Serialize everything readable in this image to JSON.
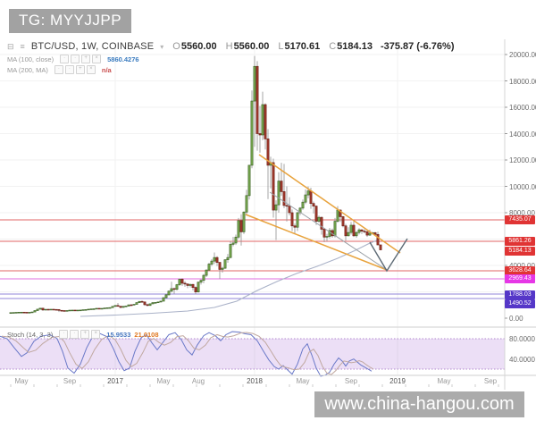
{
  "watermarks": {
    "top": "TG: MYYJJPP",
    "bottom": "www.china-hangou.com"
  },
  "header": {
    "icons": [
      "⊟",
      "≡"
    ],
    "symbol": "BTC/USD, 1W, COINBASE",
    "caret": "▾",
    "ohlc": {
      "o_label": "O",
      "o": "5560.00",
      "h_label": "H",
      "h": "5560.00",
      "l_label": "L",
      "l": "5170.61",
      "c_label": "C",
      "c": "5184.13"
    },
    "change": "-375.87 (-6.76%)"
  },
  "indicators": [
    {
      "label": "MA (100, close)",
      "value": "5860.4276",
      "value_class": "ma-val-blue"
    },
    {
      "label": "MA (200, MA)",
      "value": "n/a",
      "value_class": "ma-val-red"
    }
  ],
  "box_glyphs": [
    "·",
    "·",
    "+",
    "×"
  ],
  "stoch_row": {
    "label": "Stoch (14, 3, 3)",
    "k_value": "15.9533",
    "d_value": "21.0108"
  },
  "chart_data": {
    "type": "candlestick",
    "symbol": "BTC/USD",
    "interval": "1W",
    "exchange": "COINBASE",
    "current": {
      "open": 5560.0,
      "high": 5560.0,
      "low": 5170.61,
      "close": 5184.13,
      "change": -375.87,
      "change_pct": -6.76
    },
    "start": "2016-04",
    "freq": "weekly",
    "ylim": [
      0,
      21000
    ],
    "candles": [
      [
        415,
        425,
        405,
        420
      ],
      [
        420,
        435,
        410,
        428
      ],
      [
        428,
        445,
        418,
        440
      ],
      [
        440,
        455,
        425,
        450
      ],
      [
        450,
        460,
        440,
        452
      ],
      [
        452,
        458,
        435,
        445
      ],
      [
        445,
        452,
        430,
        440
      ],
      [
        440,
        450,
        432,
        444
      ],
      [
        444,
        475,
        438,
        470
      ],
      [
        470,
        590,
        465,
        575
      ],
      [
        575,
        700,
        560,
        680
      ],
      [
        680,
        780,
        640,
        755
      ],
      [
        755,
        770,
        550,
        625
      ],
      [
        625,
        690,
        600,
        670
      ],
      [
        670,
        705,
        640,
        650
      ],
      [
        650,
        690,
        630,
        675
      ],
      [
        675,
        685,
        605,
        660
      ],
      [
        660,
        665,
        610,
        655
      ],
      [
        655,
        660,
        465,
        590
      ],
      [
        590,
        600,
        540,
        575
      ],
      [
        575,
        590,
        555,
        572
      ],
      [
        572,
        582,
        560,
        578
      ],
      [
        578,
        615,
        570,
        605
      ],
      [
        605,
        615,
        590,
        610
      ],
      [
        610,
        618,
        595,
        600
      ],
      [
        600,
        612,
        590,
        608
      ],
      [
        608,
        620,
        595,
        615
      ],
      [
        615,
        645,
        608,
        640
      ],
      [
        640,
        660,
        630,
        650
      ],
      [
        650,
        690,
        640,
        680
      ],
      [
        680,
        715,
        670,
        700
      ],
      [
        700,
        740,
        685,
        710
      ],
      [
        710,
        755,
        695,
        745
      ],
      [
        745,
        758,
        700,
        735
      ],
      [
        735,
        750,
        720,
        742
      ],
      [
        742,
        780,
        730,
        770
      ],
      [
        770,
        800,
        760,
        790
      ],
      [
        790,
        812,
        775,
        800
      ],
      [
        800,
        900,
        790,
        895
      ],
      [
        895,
        985,
        870,
        960
      ],
      [
        960,
        1150,
        880,
        900
      ],
      [
        900,
        912,
        750,
        820
      ],
      [
        820,
        920,
        795,
        895
      ],
      [
        895,
        930,
        868,
        920
      ],
      [
        920,
        1022,
        900,
        1010
      ],
      [
        1010,
        1070,
        940,
        1000
      ],
      [
        1000,
        1062,
        988,
        1050
      ],
      [
        1050,
        1200,
        1040,
        1180
      ],
      [
        1180,
        1292,
        1150,
        1270
      ],
      [
        1270,
        1340,
        1160,
        1230
      ],
      [
        1230,
        1260,
        940,
        1025
      ],
      [
        1025,
        1100,
        900,
        965
      ],
      [
        965,
        1102,
        940,
        1090
      ],
      [
        1090,
        1192,
        1060,
        1180
      ],
      [
        1180,
        1222,
        1140,
        1190
      ],
      [
        1190,
        1252,
        1168,
        1230
      ],
      [
        1230,
        1302,
        1188,
        1290
      ],
      [
        1290,
        1580,
        1280,
        1555
      ],
      [
        1555,
        1850,
        1510,
        1770
      ],
      [
        1770,
        2090,
        1720,
        2050
      ],
      [
        2050,
        2760,
        1950,
        2240
      ],
      [
        2240,
        2320,
        1850,
        2190
      ],
      [
        2190,
        2592,
        2100,
        2540
      ],
      [
        2540,
        3000,
        2450,
        2960
      ],
      [
        2960,
        3025,
        2450,
        2650
      ],
      [
        2650,
        2802,
        2380,
        2590
      ],
      [
        2590,
        2640,
        2280,
        2480
      ],
      [
        2480,
        2622,
        2330,
        2560
      ],
      [
        2560,
        2600,
        2110,
        2330
      ],
      [
        2330,
        2410,
        1830,
        1990
      ],
      [
        1990,
        2780,
        1940,
        2730
      ],
      [
        2730,
        2940,
        2550,
        2870
      ],
      [
        2870,
        3350,
        2650,
        3250
      ],
      [
        3250,
        3700,
        3120,
        3650
      ],
      [
        3650,
        4200,
        3600,
        4100
      ],
      [
        4100,
        4480,
        3950,
        4330
      ],
      [
        4330,
        4980,
        4110,
        4600
      ],
      [
        4600,
        4700,
        3950,
        4230
      ],
      [
        4230,
        4260,
        2975,
        3700
      ],
      [
        3700,
        3902,
        3460,
        3790
      ],
      [
        3790,
        4470,
        3750,
        4430
      ],
      [
        4430,
        4870,
        4200,
        4600
      ],
      [
        4600,
        5860,
        4540,
        5600
      ],
      [
        5600,
        6170,
        5450,
        5700
      ],
      [
        5700,
        6340,
        5550,
        6150
      ],
      [
        6150,
        7600,
        6000,
        7400
      ],
      [
        7400,
        7880,
        5507,
        6550
      ],
      [
        6550,
        8100,
        6380,
        8050
      ],
      [
        8050,
        9740,
        7790,
        9300
      ],
      [
        9300,
        11550,
        9000,
        11600
      ],
      [
        11600,
        17270,
        11370,
        16470
      ],
      [
        16470,
        19891,
        13000,
        19100
      ],
      [
        19100,
        19500,
        12700,
        14000
      ],
      [
        14000,
        16100,
        12560,
        13900
      ],
      [
        13900,
        17176,
        13500,
        16200
      ],
      [
        16200,
        16300,
        12800,
        13600
      ],
      [
        13600,
        14340,
        9035,
        11600
      ],
      [
        11600,
        12250,
        9850,
        11800
      ],
      [
        11800,
        12100,
        7625,
        8200
      ],
      [
        8200,
        8940,
        5920,
        8600
      ],
      [
        8600,
        11080,
        8000,
        10400
      ],
      [
        10400,
        11790,
        9280,
        9600
      ],
      [
        9600,
        11700,
        8350,
        8550
      ],
      [
        8550,
        10000,
        7335,
        8500
      ],
      [
        8500,
        9180,
        7800,
        8000
      ],
      [
        8000,
        8250,
        6600,
        7000
      ],
      [
        7000,
        7180,
        6430,
        6900
      ],
      [
        6900,
        8060,
        6610,
        8000
      ],
      [
        8000,
        8420,
        7820,
        8350
      ],
      [
        8350,
        9000,
        8220,
        8800
      ],
      [
        8800,
        9760,
        8650,
        9350
      ],
      [
        9350,
        9990,
        9100,
        9650
      ],
      [
        9650,
        9900,
        8300,
        8700
      ],
      [
        8700,
        8850,
        7940,
        8500
      ],
      [
        8500,
        8550,
        7070,
        7350
      ],
      [
        7350,
        7780,
        7230,
        7650
      ],
      [
        7650,
        7700,
        6340,
        6750
      ],
      [
        6750,
        6840,
        5770,
        6150
      ],
      [
        6150,
        6400,
        5825,
        6200
      ],
      [
        6200,
        6850,
        6050,
        6650
      ],
      [
        6650,
        6800,
        6100,
        6250
      ],
      [
        6250,
        7600,
        6120,
        7350
      ],
      [
        7350,
        8500,
        7250,
        8200
      ],
      [
        8200,
        8255,
        7300,
        7700
      ],
      [
        7700,
        7750,
        6890,
        7000
      ],
      [
        7000,
        7150,
        5880,
        6250
      ],
      [
        6250,
        6900,
        6200,
        6500
      ],
      [
        6500,
        7300,
        6340,
        7050
      ],
      [
        7050,
        7400,
        6150,
        6250
      ],
      [
        6250,
        6600,
        6100,
        6500
      ],
      [
        6500,
        6820,
        6350,
        6700
      ],
      [
        6700,
        6750,
        6390,
        6600
      ],
      [
        6600,
        6755,
        6430,
        6550
      ],
      [
        6550,
        6640,
        6160,
        6300
      ],
      [
        6300,
        6720,
        6250,
        6450
      ],
      [
        6450,
        6550,
        6350,
        6480
      ],
      [
        6480,
        6540,
        6300,
        6350
      ],
      [
        6350,
        6560,
        5545,
        5560
      ],
      [
        5560,
        5560,
        5170.61,
        5184.13
      ]
    ],
    "price_ticks": [
      {
        "p": 20000,
        "label": "20000.00"
      },
      {
        "p": 18000,
        "label": "18000.00"
      },
      {
        "p": 16000,
        "label": "16000.00"
      },
      {
        "p": 14000,
        "label": "14000.00"
      },
      {
        "p": 12000,
        "label": "12000.00"
      },
      {
        "p": 10000,
        "label": "10000.00"
      },
      {
        "p": 8000,
        "label": "8000.00"
      },
      {
        "p": 4000,
        "label": "4000.00"
      },
      {
        "p": 0,
        "label": "0.00"
      }
    ],
    "levels": [
      {
        "value": "7435.07",
        "line_y": 246,
        "badge_y": 246,
        "type": "red"
      },
      {
        "value": "5861.26",
        "line_y": 270,
        "badge_y": 270,
        "type": "red"
      },
      {
        "value": "5184.13",
        "line_y": null,
        "badge_y": 281,
        "type": "red"
      },
      {
        "value": "3628.64",
        "line_y": 303,
        "badge_y": 303,
        "type": "red"
      },
      {
        "value": "2969.43",
        "line_y": 312,
        "badge_y": 312,
        "type": "magenta"
      },
      {
        "value": "1788.03",
        "line_y": 329,
        "badge_y": 330,
        "type": "purple"
      },
      {
        "value": "1490.52",
        "line_y": 334,
        "badge_y": 340,
        "type": "purple"
      }
    ],
    "level_colors": {
      "red": {
        "line": "#e06666",
        "badge": "#e03434"
      },
      "magenta": {
        "line": "#e06fe0",
        "badge": "#e637e6"
      },
      "purple": {
        "line": "#9084d8",
        "badge": "#5537c8"
      }
    },
    "trendlines": [
      {
        "pts": [
          [
            290,
            173
          ],
          [
            448,
            283
          ]
        ],
        "color": "#e8a33d",
        "w": 1.5,
        "name": "wedge-upper-orange"
      },
      {
        "pts": [
          [
            275,
            240
          ],
          [
            433,
            302
          ]
        ],
        "color": "#e8a33d",
        "w": 1.5,
        "name": "wedge-lower-orange"
      },
      {
        "pts": [
          [
            302,
            215
          ],
          [
            433,
            302
          ]
        ],
        "color": "#9aa0a6",
        "w": 1.0,
        "name": "gray-trendline"
      },
      {
        "pts": [
          [
            414,
            271
          ],
          [
            433,
            303
          ],
          [
            456,
            267
          ]
        ],
        "color": "#5d6a75",
        "w": 1.4,
        "name": "projection-check"
      }
    ],
    "ma100_path": [
      [
        90,
        354
      ],
      [
        130,
        352.5
      ],
      [
        170,
        350.5
      ],
      [
        210,
        348
      ],
      [
        240,
        344
      ],
      [
        265,
        337
      ],
      [
        288,
        325
      ],
      [
        310,
        315
      ],
      [
        332,
        306
      ],
      [
        355,
        298
      ],
      [
        378,
        289
      ],
      [
        398,
        280
      ],
      [
        412,
        273
      ],
      [
        424,
        268
      ]
    ],
    "stoch": {
      "k_last": 15.9533,
      "d_last": 21.0108,
      "band": [
        20,
        80
      ],
      "axis_labels": [
        {
          "text": "80.0000",
          "y": 379
        },
        {
          "text": "40.0000",
          "y": 402
        }
      ],
      "k_points": [
        [
          0,
          85
        ],
        [
          8,
          80
        ],
        [
          16,
          62
        ],
        [
          24,
          45
        ],
        [
          30,
          52
        ],
        [
          38,
          75
        ],
        [
          46,
          85
        ],
        [
          56,
          88
        ],
        [
          64,
          80
        ],
        [
          70,
          55
        ],
        [
          76,
          22
        ],
        [
          83,
          12
        ],
        [
          90,
          30
        ],
        [
          97,
          62
        ],
        [
          104,
          85
        ],
        [
          112,
          90
        ],
        [
          120,
          84
        ],
        [
          127,
          60
        ],
        [
          133,
          35
        ],
        [
          139,
          17
        ],
        [
          145,
          22
        ],
        [
          151,
          55
        ],
        [
          158,
          82
        ],
        [
          164,
          88
        ],
        [
          170,
          72
        ],
        [
          176,
          58
        ],
        [
          182,
          72
        ],
        [
          189,
          88
        ],
        [
          196,
          92
        ],
        [
          203,
          78
        ],
        [
          209,
          58
        ],
        [
          215,
          48
        ],
        [
          221,
          68
        ],
        [
          228,
          86
        ],
        [
          234,
          92
        ],
        [
          241,
          86
        ],
        [
          247,
          76
        ],
        [
          253,
          88
        ],
        [
          260,
          94
        ],
        [
          268,
          93
        ],
        [
          274,
          90
        ],
        [
          281,
          88
        ],
        [
          288,
          76
        ],
        [
          295,
          55
        ],
        [
          301,
          38
        ],
        [
          307,
          25
        ],
        [
          312,
          20
        ],
        [
          317,
          27
        ],
        [
          321,
          20
        ],
        [
          327,
          10
        ],
        [
          333,
          30
        ],
        [
          339,
          60
        ],
        [
          344,
          70
        ],
        [
          349,
          48
        ],
        [
          354,
          22
        ],
        [
          359,
          6
        ],
        [
          364,
          8
        ],
        [
          369,
          14
        ],
        [
          374,
          30
        ],
        [
          379,
          42
        ],
        [
          383,
          36
        ],
        [
          387,
          26
        ],
        [
          391,
          36
        ],
        [
          396,
          40
        ],
        [
          400,
          34
        ],
        [
          404,
          28
        ],
        [
          408,
          24
        ],
        [
          412,
          20
        ],
        [
          416,
          16
        ]
      ]
    },
    "time_ticks": [
      {
        "t": "May",
        "x": 24,
        "year": false
      },
      {
        "t": "Sep",
        "x": 78,
        "year": false
      },
      {
        "t": "2017",
        "x": 129,
        "year": true
      },
      {
        "t": "May",
        "x": 183,
        "year": false
      },
      {
        "t": "Aug",
        "x": 222,
        "year": false
      },
      {
        "t": "2018",
        "x": 285,
        "year": true
      },
      {
        "t": "May",
        "x": 339,
        "year": false
      },
      {
        "t": "Sep",
        "x": 393,
        "year": false
      },
      {
        "t": "2019",
        "x": 445,
        "year": true
      },
      {
        "t": "May",
        "x": 497,
        "year": false
      },
      {
        "t": "Sep",
        "x": 549,
        "year": false
      }
    ],
    "geometry": {
      "price_k": 0.01475,
      "price_b": 356,
      "x0": 12,
      "dx": 3,
      "axis_x": 565,
      "pane_split_y": 366,
      "axis_row_y": 420,
      "stoch_y80": 379,
      "stoch_y20": 413
    },
    "candle_colors": {
      "up_fill": "#7cae52",
      "up_stroke": "#40662a",
      "down_fill": "#a53a2c",
      "down_stroke": "#6f241a",
      "wick": "#8f8f8f"
    }
  }
}
